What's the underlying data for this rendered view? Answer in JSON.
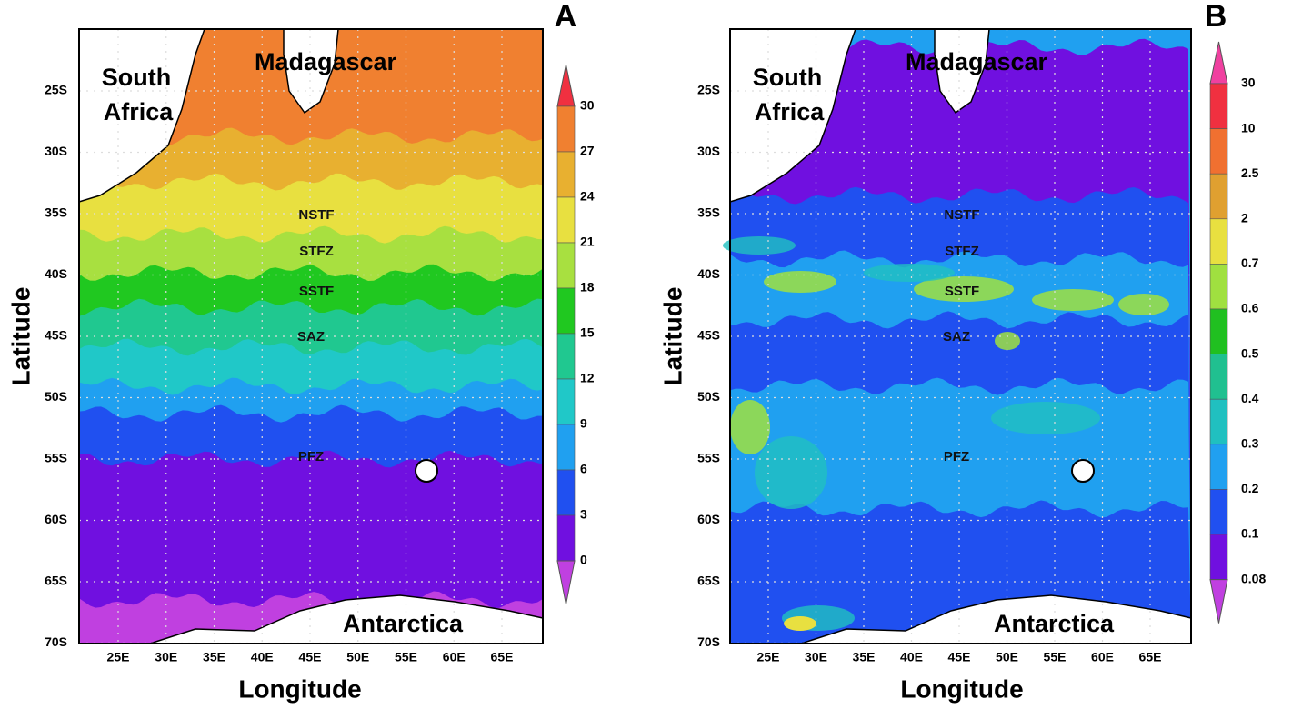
{
  "panels": [
    {
      "letter": "A",
      "y_axis_label": "Latitude",
      "x_axis_label": "Longitude",
      "lat_ticks": [
        "25S",
        "30S",
        "35S",
        "40S",
        "45S",
        "50S",
        "55S",
        "60S",
        "65S",
        "70S"
      ],
      "lon_ticks": [
        "25E",
        "30E",
        "35E",
        "40E",
        "45E",
        "50E",
        "55E",
        "60E",
        "65E"
      ],
      "places": {
        "south_africa": [
          "South",
          "Africa"
        ],
        "madagascar": "Madagascar",
        "antarctica": "Antarctica"
      },
      "zones": [
        "NSTF",
        "STFZ",
        "SSTF",
        "SAZ",
        "PFZ"
      ],
      "colorbar": {
        "labels": [
          "30",
          "27",
          "24",
          "21",
          "18",
          "15",
          "12",
          "9",
          "6",
          "3",
          "0"
        ],
        "colors": [
          "#f08030",
          "#e8b030",
          "#e8e040",
          "#a8e040",
          "#20c820",
          "#20c890",
          "#20c8c8",
          "#20a0f0",
          "#2050f0",
          "#7010e0"
        ],
        "over_color": "#f03040",
        "under_color": "#c040e0"
      }
    },
    {
      "letter": "B",
      "y_axis_label": "Latitude",
      "x_axis_label": "Longitude",
      "lat_ticks": [
        "25S",
        "30S",
        "35S",
        "40S",
        "45S",
        "50S",
        "55S",
        "60S",
        "65S",
        "70S"
      ],
      "lon_ticks": [
        "25E",
        "30E",
        "35E",
        "40E",
        "45E",
        "50E",
        "55E",
        "60E",
        "65E"
      ],
      "places": {
        "south_africa": [
          "South",
          "Africa"
        ],
        "madagascar": "Madagascar",
        "antarctica": "Antarctica"
      },
      "zones": [
        "NSTF",
        "STFZ",
        "SSTF",
        "SAZ",
        "PFZ"
      ],
      "colorbar": {
        "labels": [
          "30",
          "10",
          "2.5",
          "2",
          "0.7",
          "0.6",
          "0.5",
          "0.4",
          "0.3",
          "0.2",
          "0.1",
          "0.08"
        ],
        "colors": [
          "#f03040",
          "#f07030",
          "#e0a030",
          "#e8e040",
          "#a0e040",
          "#20c020",
          "#20c090",
          "#20c0c0",
          "#20a0f0",
          "#2050f0",
          "#7010e0"
        ],
        "over_color": "#f040a0",
        "under_color": "#c040e0"
      }
    }
  ]
}
